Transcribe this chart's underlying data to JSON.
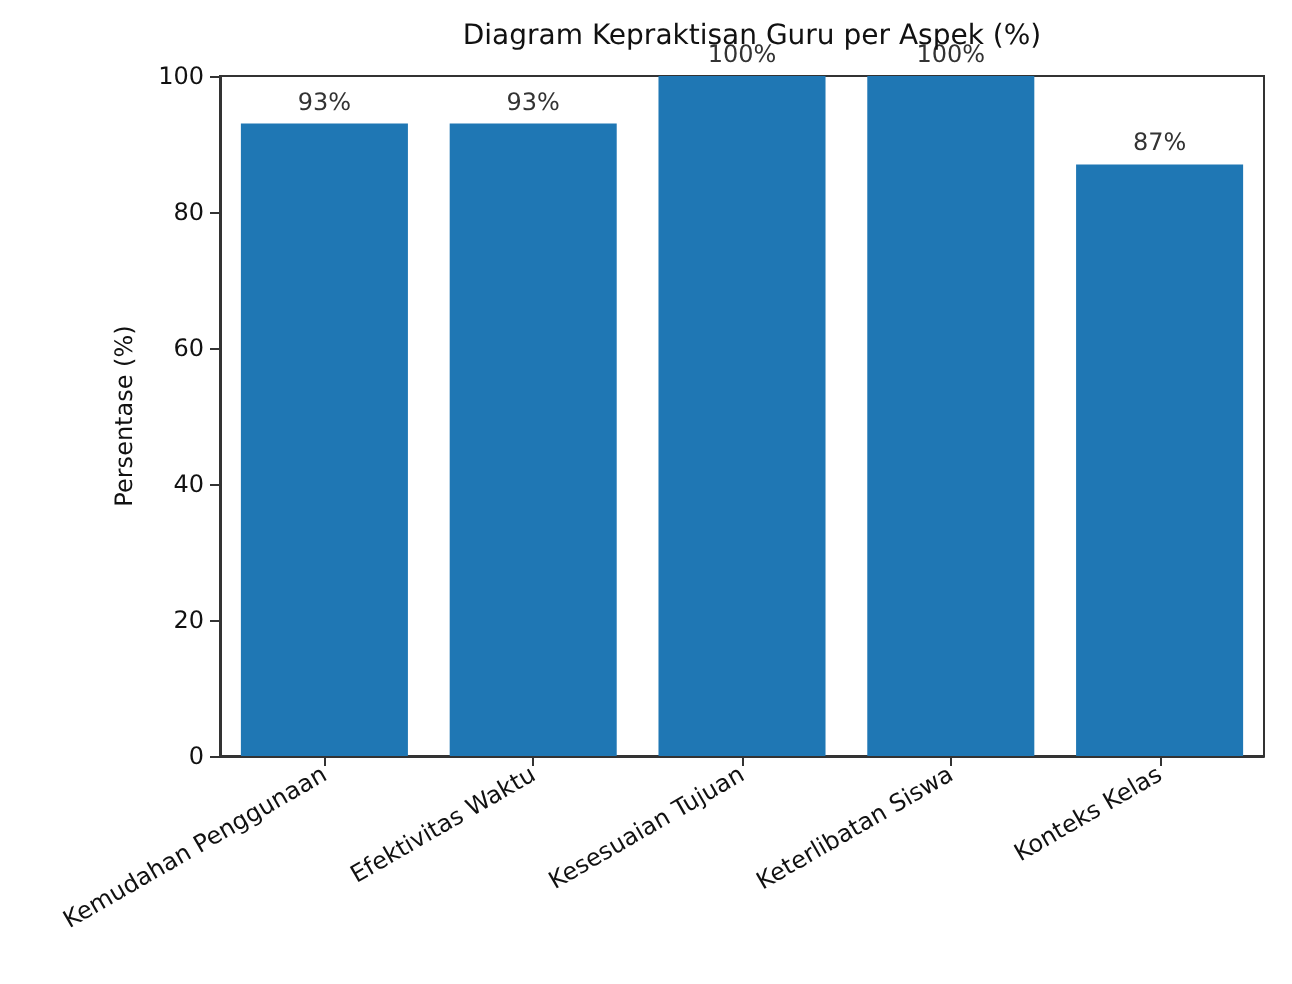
{
  "chart_data": {
    "type": "bar",
    "title": "Diagram Kepraktisan Guru per Aspek (%)",
    "ylabel": "Persentase (%)",
    "categories": [
      "Kemudahan Penggunaan",
      "Efektivitas Waktu",
      "Kesesuaian Tujuan",
      "Keterlibatan Siswa",
      "Konteks Kelas"
    ],
    "values": [
      93,
      93,
      100,
      100,
      87
    ],
    "value_labels": [
      "93%",
      "93%",
      "100%",
      "100%",
      "87%"
    ],
    "color": "#1f77b4",
    "ylim": [
      0,
      100
    ],
    "yticks": [
      0,
      20,
      40,
      60,
      80,
      100
    ],
    "grid": false
  }
}
